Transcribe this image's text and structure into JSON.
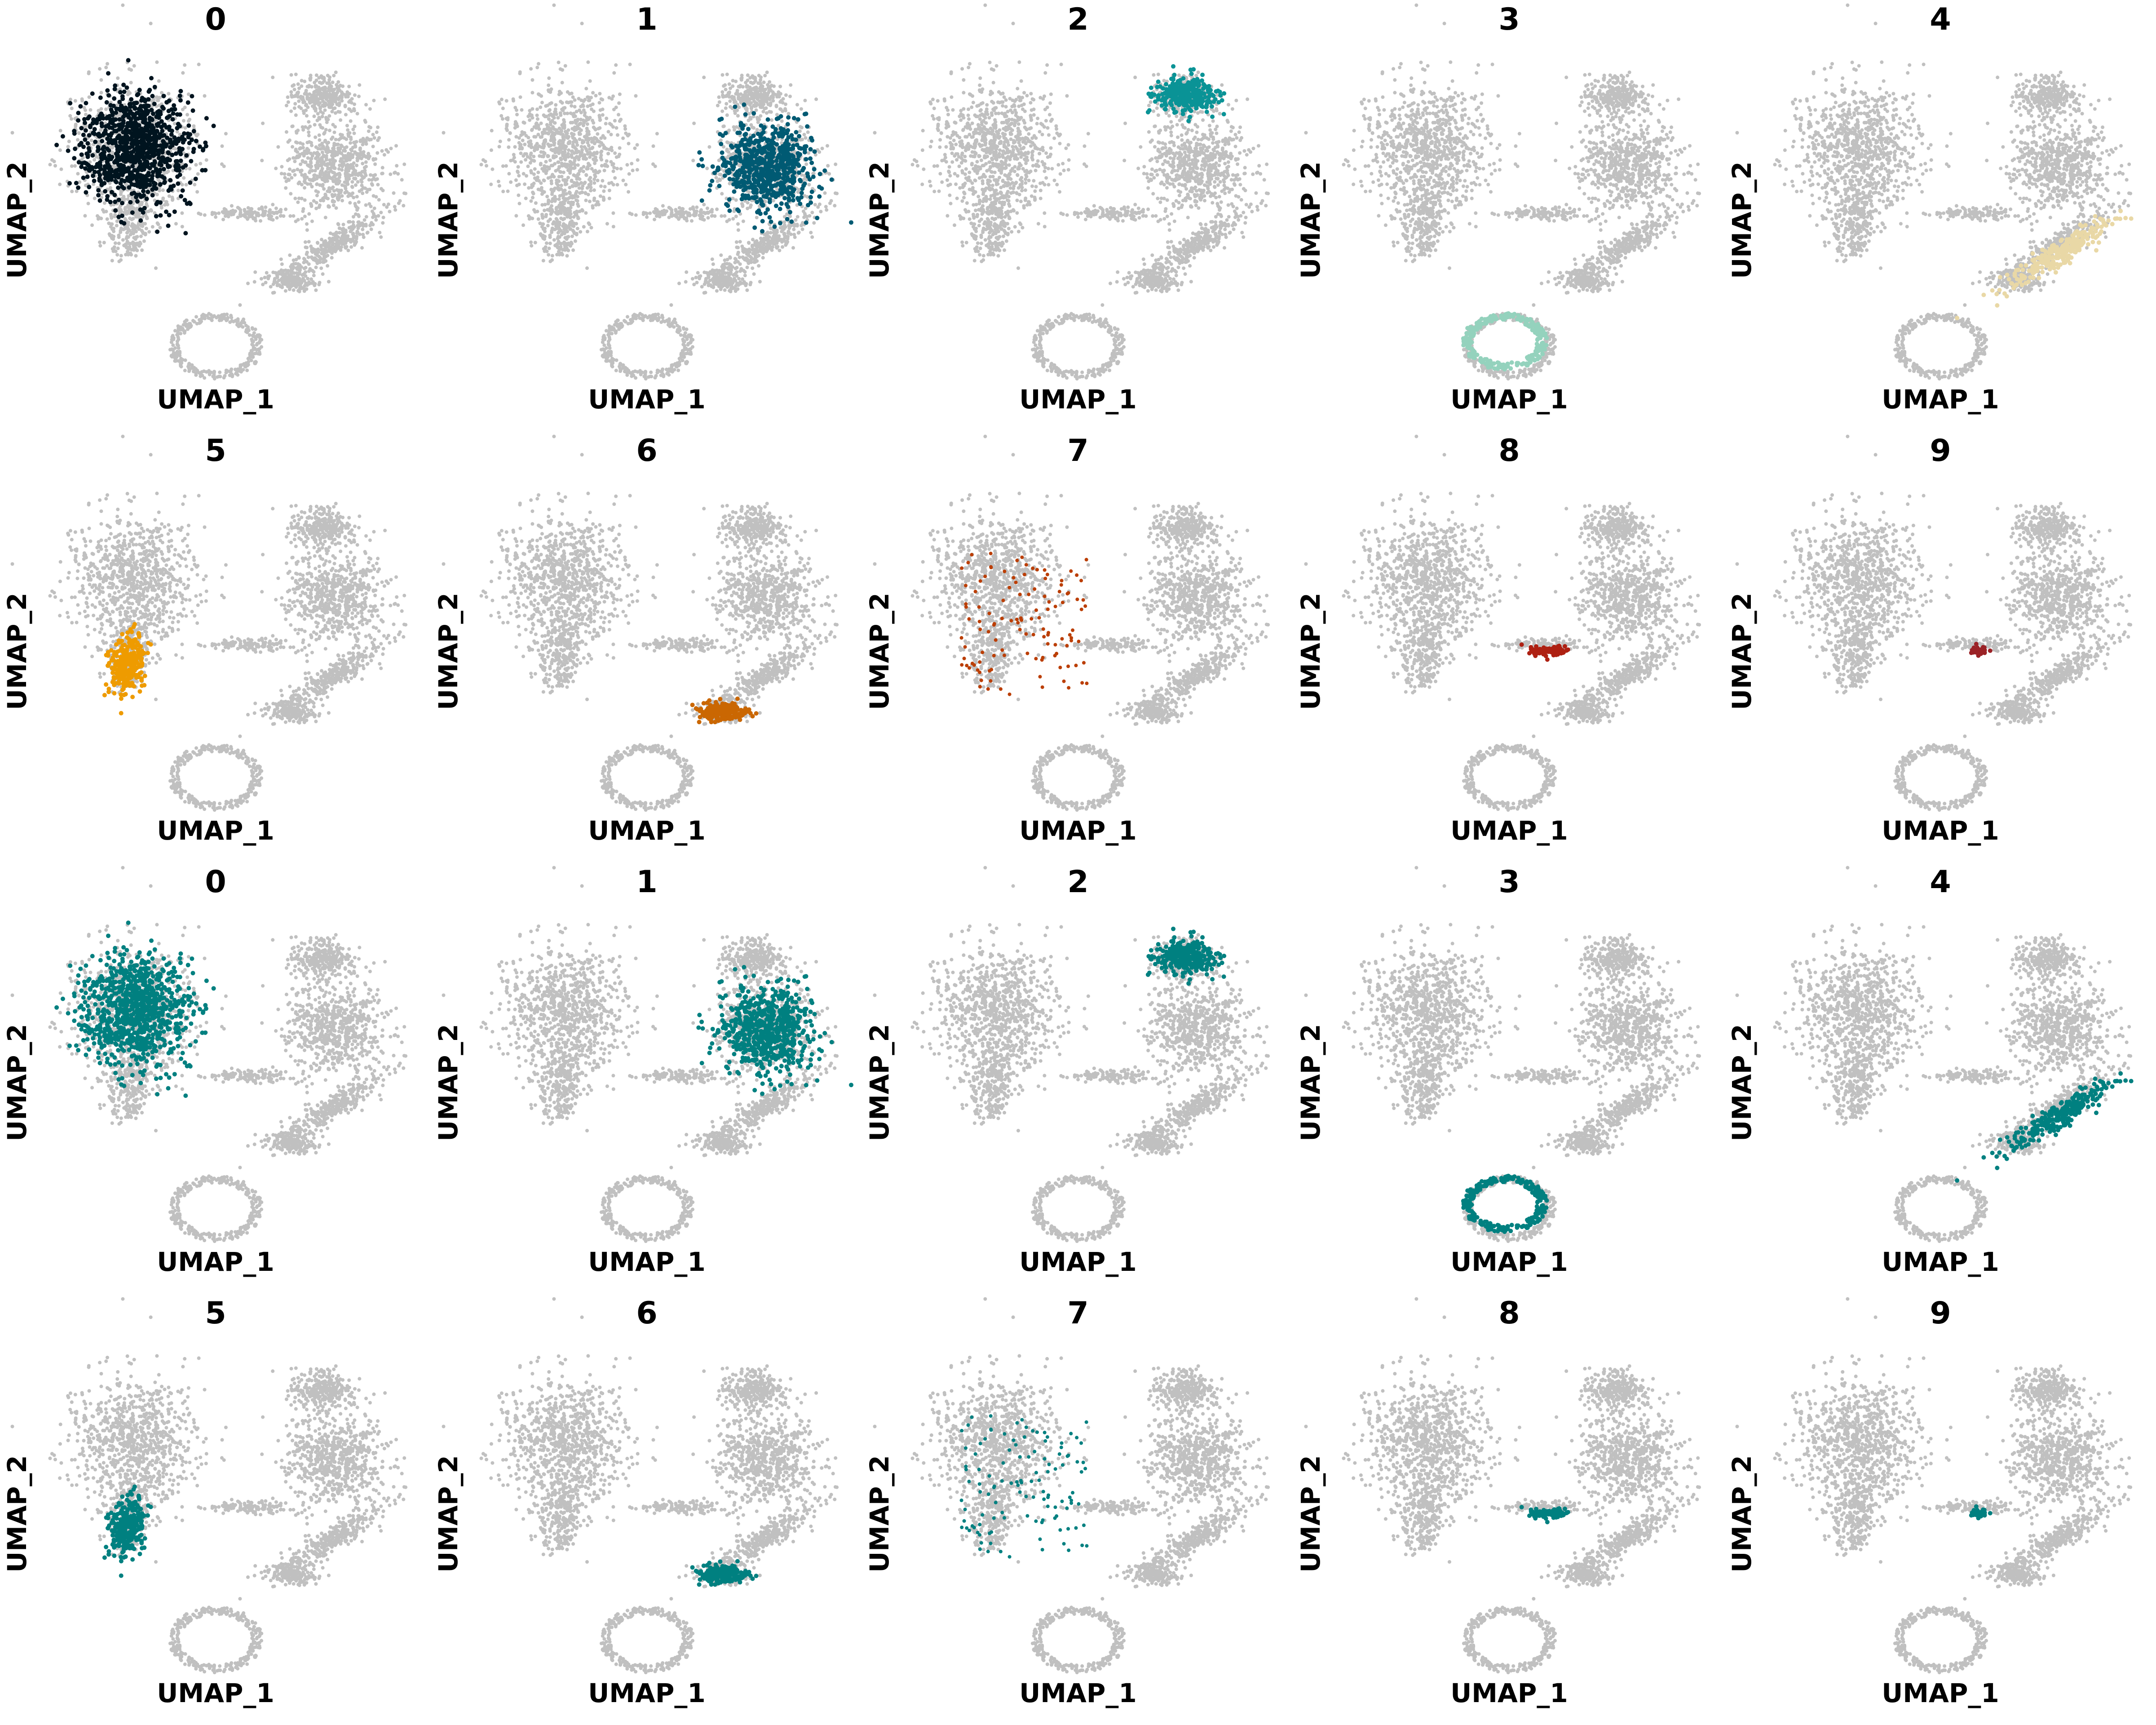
{
  "chart_data": {
    "type": "scatter",
    "description_of_grid": "2 sets of 10 UMAP cluster highlight panels",
    "xlabel": "UMAP_1",
    "ylabel": "UMAP_2",
    "background_color": "#C0C0C0",
    "grid": false,
    "legend": "none",
    "panels": [
      {
        "title": "0",
        "cluster": 0,
        "color": "#00141F"
      },
      {
        "title": "1",
        "cluster": 1,
        "color": "#005A73"
      },
      {
        "title": "2",
        "cluster": 2,
        "color": "#0A9396"
      },
      {
        "title": "3",
        "cluster": 3,
        "color": "#94D2BD"
      },
      {
        "title": "4",
        "cluster": 4,
        "color": "#E9D8A6"
      },
      {
        "title": "5",
        "cluster": 5,
        "color": "#EE9B00"
      },
      {
        "title": "6",
        "cluster": 6,
        "color": "#CA6702"
      },
      {
        "title": "7",
        "cluster": 7,
        "color": "#BB3E03"
      },
      {
        "title": "8",
        "cluster": 8,
        "color": "#AE2012"
      },
      {
        "title": "9",
        "cluster": 9,
        "color": "#9B2226"
      },
      {
        "title": "0",
        "cluster": 0,
        "color": "#008080"
      },
      {
        "title": "1",
        "cluster": 1,
        "color": "#008080"
      },
      {
        "title": "2",
        "cluster": 2,
        "color": "#008080"
      },
      {
        "title": "3",
        "cluster": 3,
        "color": "#008080"
      },
      {
        "title": "4",
        "cluster": 4,
        "color": "#008080"
      },
      {
        "title": "5",
        "cluster": 5,
        "color": "#008080"
      },
      {
        "title": "6",
        "cluster": 6,
        "color": "#008080"
      },
      {
        "title": "7",
        "cluster": 7,
        "color": "#008080"
      },
      {
        "title": "8",
        "cluster": 8,
        "color": "#008080"
      },
      {
        "title": "9",
        "cluster": 9,
        "color": "#008080"
      }
    ]
  }
}
